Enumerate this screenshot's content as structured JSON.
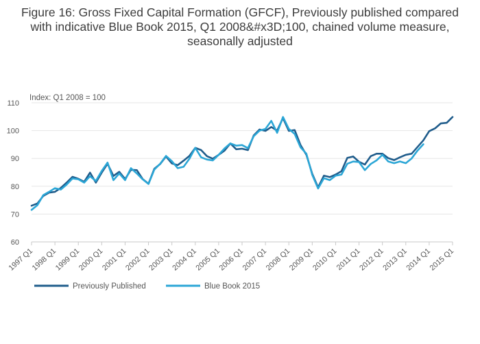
{
  "chart_data": {
    "type": "line",
    "title": "Figure 16: Gross Fixed Capital Formation (GFCF), Previously published compared with indicative Blue Book 2015, Q1 2008&#x3D;100, chained volume measure, seasonally adjusted",
    "ylabel": "Index: Q1 2008 = 100",
    "xlabel": "",
    "ylim": [
      60,
      110
    ],
    "yticks": [
      60,
      70,
      80,
      90,
      100,
      110
    ],
    "xlim": [
      1997.0,
      2015.0
    ],
    "xtick_labels": [
      "1997 Q1",
      "1998 Q1",
      "1999 Q1",
      "2000 Q1",
      "2001 Q1",
      "2002 Q1",
      "2003 Q1",
      "2004 Q1",
      "2005 Q1",
      "2006 Q1",
      "2007 Q1",
      "2008 Q1",
      "2009 Q1",
      "2010 Q1",
      "2011 Q1",
      "2012 Q1",
      "2013 Q1",
      "2014 Q1",
      "2015 Q1"
    ],
    "grid": true,
    "legend_position": "bottom-left",
    "series": [
      {
        "name": "Previously Published",
        "color": "#1f5c8b",
        "x_start": 1997.0,
        "step": 0.25,
        "values": [
          73.0,
          73.8,
          76.5,
          77.7,
          78.0,
          79.4,
          81.3,
          83.4,
          82.7,
          81.6,
          84.9,
          81.3,
          84.9,
          88.1,
          83.7,
          85.2,
          82.6,
          85.9,
          85.8,
          82.6,
          80.9,
          86.3,
          88.0,
          90.7,
          88.2,
          87.6,
          89.2,
          90.9,
          93.8,
          93.0,
          90.8,
          89.9,
          91.3,
          92.8,
          95.4,
          93.3,
          93.5,
          93.0,
          98.3,
          100.4,
          99.9,
          101.3,
          100.0,
          104.5,
          99.9,
          100.2,
          94.8,
          91.3,
          84.5,
          79.6,
          83.8,
          83.3,
          84.2,
          85.4,
          90.2,
          90.7,
          88.8,
          87.8,
          90.8,
          91.7,
          91.7,
          90.1,
          89.4,
          90.4,
          91.3,
          91.7,
          94.1,
          96.5,
          99.8,
          100.8,
          102.6,
          102.8,
          104.9
        ]
      },
      {
        "name": "Blue Book 2015",
        "color": "#2ba6d6",
        "x_start": 1997.0,
        "step": 0.25,
        "values": [
          71.5,
          73.2,
          76.8,
          78.0,
          79.3,
          78.8,
          80.6,
          82.8,
          82.5,
          81.3,
          83.6,
          81.9,
          85.5,
          88.5,
          82.2,
          84.6,
          82.2,
          86.5,
          84.6,
          82.5,
          80.8,
          86.0,
          88.1,
          90.9,
          89.0,
          86.5,
          87.0,
          89.9,
          93.8,
          90.4,
          89.6,
          89.3,
          91.3,
          93.6,
          95.4,
          94.6,
          94.8,
          93.7,
          98.0,
          100.0,
          100.6,
          103.5,
          99.2,
          104.9,
          100.6,
          98.8,
          94.0,
          91.7,
          84.1,
          79.2,
          82.9,
          82.2,
          83.8,
          84.2,
          88.1,
          88.9,
          88.7,
          85.8,
          88.0,
          89.3,
          91.3,
          88.9,
          88.3,
          88.9,
          88.3,
          90.0,
          92.8,
          95.1
        ]
      }
    ]
  }
}
